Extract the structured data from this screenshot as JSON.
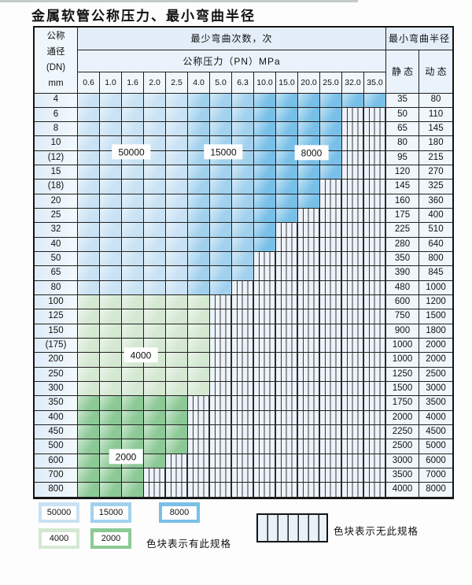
{
  "title": "金属软管公称压力、最小弯曲半径",
  "table": {
    "dn_header": "公称\n通径\n(DN)\nmm",
    "cycles_header": "最少弯曲次数，次",
    "pressure_header": "公称压力（PN）MPa",
    "radius_header": "最小弯曲半径",
    "static_label": "静 态",
    "dynamic_label": "动 态",
    "pressures": [
      "0.6",
      "1.0",
      "1.6",
      "2.0",
      "2.5",
      "4.0",
      "5.0",
      "6.3",
      "10.0",
      "15.0",
      "20.0",
      "25.0",
      "32.0",
      "35.0"
    ],
    "rows": [
      {
        "dn": "4",
        "colored_through": "35.0",
        "static": "35",
        "dynamic": "80"
      },
      {
        "dn": "6",
        "colored_through": "25.0",
        "static": "50",
        "dynamic": "110"
      },
      {
        "dn": "8",
        "colored_through": "25.0",
        "static": "65",
        "dynamic": "145"
      },
      {
        "dn": "10",
        "colored_through": "25.0",
        "static": "80",
        "dynamic": "180"
      },
      {
        "dn": "(12)",
        "colored_through": "25.0",
        "static": "95",
        "dynamic": "215"
      },
      {
        "dn": "15",
        "colored_through": "25.0",
        "static": "120",
        "dynamic": "270"
      },
      {
        "dn": "(18)",
        "colored_through": "20.0",
        "static": "145",
        "dynamic": "325"
      },
      {
        "dn": "20",
        "colored_through": "20.0",
        "static": "160",
        "dynamic": "360"
      },
      {
        "dn": "25",
        "colored_through": "15.0",
        "static": "175",
        "dynamic": "400"
      },
      {
        "dn": "32",
        "colored_through": "10.0",
        "static": "225",
        "dynamic": "510"
      },
      {
        "dn": "40",
        "colored_through": "10.0",
        "static": "280",
        "dynamic": "640"
      },
      {
        "dn": "50",
        "colored_through": "6.3",
        "static": "350",
        "dynamic": "800"
      },
      {
        "dn": "65",
        "colored_through": "6.3",
        "static": "390",
        "dynamic": "845"
      },
      {
        "dn": "80",
        "colored_through": "5.0",
        "static": "480",
        "dynamic": "1000"
      },
      {
        "dn": "100",
        "colored_through": "4.0",
        "static": "600",
        "dynamic": "1200"
      },
      {
        "dn": "125",
        "colored_through": "4.0",
        "static": "750",
        "dynamic": "1500"
      },
      {
        "dn": "150",
        "colored_through": "4.0",
        "static": "900",
        "dynamic": "1800"
      },
      {
        "dn": "(175)",
        "colored_through": "4.0",
        "static": "1000",
        "dynamic": "2000"
      },
      {
        "dn": "200",
        "colored_through": "4.0",
        "static": "1000",
        "dynamic": "2000"
      },
      {
        "dn": "250",
        "colored_through": "4.0",
        "static": "1250",
        "dynamic": "2500"
      },
      {
        "dn": "300",
        "colored_through": "4.0",
        "static": "1500",
        "dynamic": "3000"
      },
      {
        "dn": "350",
        "colored_through": "2.5",
        "static": "1750",
        "dynamic": "3500"
      },
      {
        "dn": "400",
        "colored_through": "2.5",
        "static": "2000",
        "dynamic": "4000"
      },
      {
        "dn": "450",
        "colored_through": "2.5",
        "static": "2250",
        "dynamic": "4500"
      },
      {
        "dn": "500",
        "colored_through": "2.5",
        "static": "2500",
        "dynamic": "5000"
      },
      {
        "dn": "600",
        "colored_through": "2.0",
        "static": "3000",
        "dynamic": "6000"
      },
      {
        "dn": "700",
        "colored_through": "1.6",
        "static": "3500",
        "dynamic": "7000"
      },
      {
        "dn": "800",
        "colored_through": "1.6",
        "static": "4000",
        "dynamic": "8000"
      }
    ]
  },
  "cycle_regions": {
    "blue_dn_4_to_80": [
      {
        "cycles": "50000",
        "pressures": [
          "0.6",
          "1.0",
          "1.6",
          "2.0",
          "2.5"
        ]
      },
      {
        "cycles": "15000",
        "pressures": [
          "4.0",
          "5.0",
          "6.3"
        ]
      },
      {
        "cycles": "8000",
        "pressures": [
          "10.0",
          "15.0",
          "20.0",
          "25.0",
          "32.0",
          "35.0"
        ]
      }
    ],
    "green_dn_100_to_800": [
      {
        "cycles": "4000",
        "dn": [
          "100",
          "125",
          "150",
          "(175)",
          "200",
          "250",
          "300"
        ]
      },
      {
        "cycles": "2000",
        "dn": [
          "350",
          "400",
          "450",
          "500",
          "600",
          "700",
          "800"
        ]
      }
    ]
  },
  "region_labels": {
    "r50000": "50000",
    "r15000": "15000",
    "r8000": "8000",
    "r4000": "4000",
    "r2000": "2000"
  },
  "legend": {
    "items": [
      "50000",
      "15000",
      "8000",
      "4000",
      "2000"
    ],
    "has_spec_text": "色块表示有此规格",
    "no_spec_text": "色块表示无此规格"
  },
  "colors": {
    "c50000": "#c9e2f4",
    "c15000": "#a2d1ee",
    "c8000": "#79c0e8",
    "c4000": "#d4e8d2",
    "c2000": "#8cc996",
    "hatchbg": "#edf3fa"
  }
}
